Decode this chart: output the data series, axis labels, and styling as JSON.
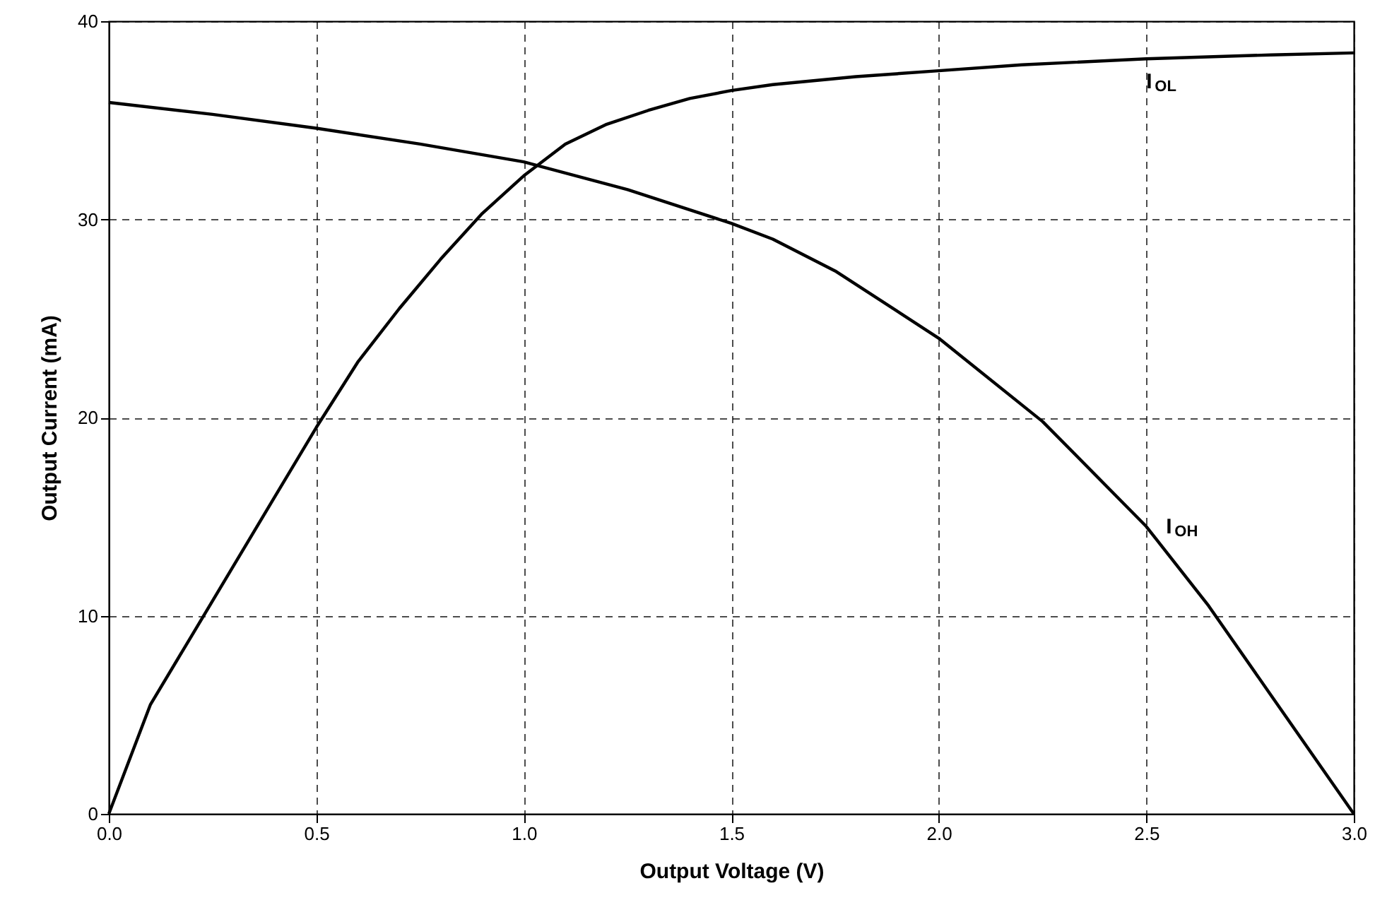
{
  "chart_data": {
    "type": "line",
    "xlabel": "Output Voltage (V)",
    "ylabel": "Output Current (mA)",
    "xlim": [
      0,
      3
    ],
    "ylim": [
      0,
      40
    ],
    "xticks": [
      {
        "value": 0,
        "label": "0.0"
      },
      {
        "value": 0.5,
        "label": "0.5"
      },
      {
        "value": 1,
        "label": "1.0"
      },
      {
        "value": 1.5,
        "label": "1.5"
      },
      {
        "value": 2,
        "label": "2.0"
      },
      {
        "value": 2.5,
        "label": "2.5"
      },
      {
        "value": 3,
        "label": "3.0"
      }
    ],
    "yticks": [
      0,
      10,
      20,
      30,
      40
    ],
    "grid": true,
    "marker": "none",
    "line_style": "solid",
    "series": [
      {
        "name": "I$_{OL}$",
        "color": "#000000",
        "x": [
          0,
          0.1,
          0.2,
          0.3,
          0.4,
          0.5,
          0.6,
          0.7,
          0.8,
          0.9,
          1.0,
          1.1,
          1.2,
          1.3,
          1.4,
          1.5,
          1.6,
          1.8,
          2.0,
          2.2,
          2.5,
          2.8,
          3.0
        ],
        "values": [
          0,
          5.5,
          9,
          12.5,
          16,
          19.5,
          22.8,
          25.5,
          28,
          30.3,
          32.2,
          33.8,
          34.8,
          35.5,
          36.1,
          36.5,
          36.8,
          37.2,
          37.5,
          37.8,
          38.1,
          38.3,
          38.4
        ]
      },
      {
        "name": "I$_{OH}$",
        "color": "#000000",
        "x": [
          0,
          0.25,
          0.5,
          0.75,
          1.0,
          1.25,
          1.5,
          1.6,
          1.75,
          2.0,
          2.25,
          2.5,
          2.65,
          2.8,
          3.0
        ],
        "values": [
          35.9,
          35.3,
          34.6,
          33.8,
          32.9,
          31.5,
          29.8,
          29.0,
          27.4,
          24.0,
          19.8,
          14.5,
          10.5,
          6,
          0
        ]
      }
    ]
  }
}
